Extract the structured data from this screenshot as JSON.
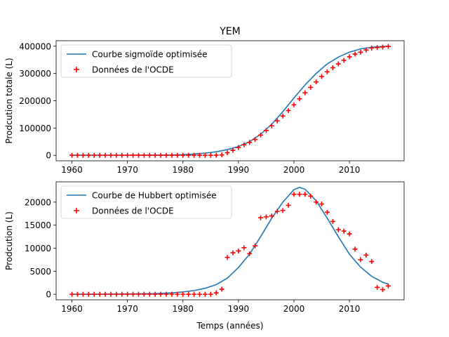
{
  "colors": {
    "curve": "#1f77b4",
    "points": "#ff0000",
    "axes": "#000000",
    "legend_border": "#cccccc",
    "background": "#ffffff"
  },
  "chart_data": [
    {
      "type": "line",
      "title": "YEM",
      "xlabel": "",
      "ylabel": "Prodcution totale (L)",
      "xlim": [
        1957.15,
        2019.85
      ],
      "ylim": [
        -20000,
        420000
      ],
      "xticks": [
        1960,
        1970,
        1980,
        1990,
        2000,
        2010
      ],
      "xtick_labels": [
        "1960",
        "1970",
        "1980",
        "1990",
        "2000",
        "2010"
      ],
      "yticks": [
        0,
        100000,
        200000,
        300000,
        400000
      ],
      "ytick_labels": [
        "0",
        "100000",
        "200000",
        "300000",
        "400000"
      ],
      "legend_position": "upper-left",
      "series": [
        {
          "name": "Courbe sigmoïde optimisée",
          "kind": "line",
          "x": [
            1960,
            1965,
            1970,
            1975,
            1978,
            1980,
            1982,
            1984,
            1986,
            1988,
            1990,
            1992,
            1994,
            1996,
            1998,
            2000,
            2002,
            2004,
            2006,
            2008,
            2010,
            2012,
            2014,
            2016,
            2017
          ],
          "y": [
            0,
            100,
            300,
            800,
            1500,
            2500,
            4500,
            8000,
            13000,
            21000,
            32000,
            50000,
            77000,
            114000,
            160000,
            210000,
            258000,
            300000,
            335000,
            360000,
            378000,
            390000,
            396000,
            399000,
            400000
          ]
        },
        {
          "name": "Données de l'OCDE",
          "kind": "scatter",
          "x": [
            1960,
            1961,
            1962,
            1963,
            1964,
            1965,
            1966,
            1967,
            1968,
            1969,
            1970,
            1971,
            1972,
            1973,
            1974,
            1975,
            1976,
            1977,
            1978,
            1979,
            1980,
            1981,
            1982,
            1983,
            1984,
            1985,
            1986,
            1987,
            1988,
            1989,
            1990,
            1991,
            1992,
            1993,
            1994,
            1995,
            1996,
            1997,
            1998,
            1999,
            2000,
            2001,
            2002,
            2003,
            2004,
            2005,
            2006,
            2007,
            2008,
            2009,
            2010,
            2011,
            2012,
            2013,
            2014,
            2015,
            2016,
            2017
          ],
          "y": [
            0,
            0,
            0,
            0,
            0,
            0,
            0,
            0,
            0,
            0,
            0,
            0,
            0,
            0,
            0,
            0,
            0,
            0,
            0,
            0,
            0,
            0,
            0,
            0,
            0,
            0,
            300,
            1400,
            9400,
            18400,
            28500,
            38500,
            47500,
            58000,
            74000,
            91000,
            108000,
            126000,
            144000,
            164000,
            185000,
            207000,
            229000,
            249000,
            269000,
            289000,
            306000,
            321000,
            335000,
            348000,
            361000,
            371000,
            378000,
            386000,
            393000,
            395000,
            397000,
            399000
          ]
        }
      ]
    },
    {
      "type": "line",
      "title": "",
      "xlabel": "Temps (années)",
      "ylabel": "Prodcution (L)",
      "xlim": [
        1957.15,
        2019.85
      ],
      "ylim": [
        -1200,
        24400
      ],
      "xticks": [
        1960,
        1970,
        1980,
        1990,
        2000,
        2010
      ],
      "xtick_labels": [
        "1960",
        "1970",
        "1980",
        "1990",
        "2000",
        "2010"
      ],
      "yticks": [
        0,
        5000,
        10000,
        15000,
        20000
      ],
      "ytick_labels": [
        "0",
        "5000",
        "10000",
        "15000",
        "20000"
      ],
      "legend_position": "upper-left",
      "series": [
        {
          "name": "Courbe de Hubbert optimisée",
          "kind": "line",
          "x": [
            1960,
            1965,
            1970,
            1975,
            1978,
            1980,
            1982,
            1984,
            1986,
            1988,
            1990,
            1992,
            1994,
            1996,
            1998,
            2000,
            2001,
            2002,
            2004,
            2006,
            2008,
            2010,
            2012,
            2014,
            2016,
            2017
          ],
          "y": [
            0,
            20,
            60,
            150,
            300,
            500,
            800,
            1300,
            2100,
            3500,
            5800,
            8700,
            12500,
            16500,
            20000,
            22700,
            23200,
            22800,
            20300,
            16500,
            12500,
            8700,
            5900,
            3900,
            2600,
            2200
          ]
        },
        {
          "name": "Données de l'OCDE",
          "kind": "scatter",
          "x": [
            1960,
            1961,
            1962,
            1963,
            1964,
            1965,
            1966,
            1967,
            1968,
            1969,
            1970,
            1971,
            1972,
            1973,
            1974,
            1975,
            1976,
            1977,
            1978,
            1979,
            1980,
            1981,
            1982,
            1983,
            1984,
            1985,
            1986,
            1987,
            1988,
            1989,
            1990,
            1991,
            1992,
            1993,
            1994,
            1995,
            1996,
            1997,
            1998,
            1999,
            2000,
            2001,
            2002,
            2003,
            2004,
            2005,
            2006,
            2007,
            2008,
            2009,
            2010,
            2011,
            2012,
            2013,
            2014,
            2015,
            2016,
            2017
          ],
          "y": [
            0,
            0,
            0,
            0,
            0,
            0,
            0,
            0,
            0,
            0,
            0,
            0,
            0,
            0,
            0,
            0,
            0,
            0,
            0,
            0,
            0,
            0,
            0,
            0,
            0,
            0,
            300,
            1100,
            8000,
            9000,
            9400,
            10100,
            8800,
            10500,
            16600,
            16800,
            17000,
            18000,
            18200,
            19300,
            21700,
            21700,
            21700,
            21300,
            20000,
            19600,
            17800,
            15800,
            14000,
            13700,
            13100,
            9800,
            7500,
            8500,
            7100,
            1500,
            1000,
            1800
          ]
        }
      ]
    }
  ]
}
